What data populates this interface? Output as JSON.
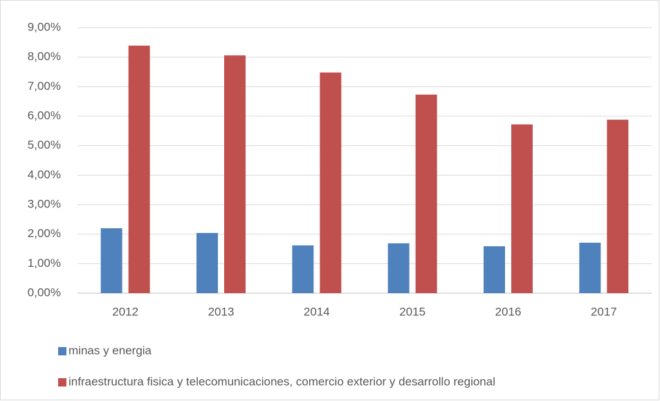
{
  "chart_data": {
    "type": "bar",
    "categories": [
      "2012",
      "2013",
      "2014",
      "2015",
      "2016",
      "2017"
    ],
    "series": [
      {
        "name": "minas y energia",
        "color": "#4f81bd",
        "values": [
          2.2,
          2.04,
          1.62,
          1.69,
          1.59,
          1.71
        ]
      },
      {
        "name": "infraestructura fisica y telecomunicaciones, comercio exterior y desarrollo regional",
        "color": "#c0504d",
        "values": [
          8.39,
          8.06,
          7.48,
          6.73,
          5.72,
          5.88
        ]
      }
    ],
    "ylim": [
      0,
      9
    ],
    "yticks": [
      {
        "value": 0,
        "label": "0,00%"
      },
      {
        "value": 1,
        "label": "1,00%"
      },
      {
        "value": 2,
        "label": "2,00%"
      },
      {
        "value": 3,
        "label": "3,00%"
      },
      {
        "value": 4,
        "label": "4,00%"
      },
      {
        "value": 5,
        "label": "5,00%"
      },
      {
        "value": 6,
        "label": "6,00%"
      },
      {
        "value": 7,
        "label": "7,00%"
      },
      {
        "value": 8,
        "label": "8,00%"
      },
      {
        "value": 9,
        "label": "9,00%"
      }
    ],
    "grid": true,
    "legend": "bottom"
  }
}
